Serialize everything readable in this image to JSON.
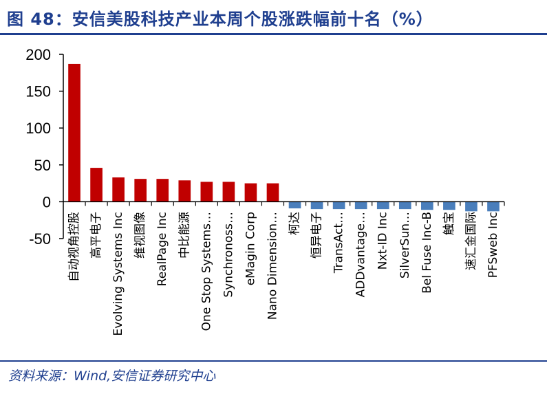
{
  "title": "图 48：安信美股科技产业本周个股涨跌幅前十名（%）",
  "source": "资料来源：Wind,安信证券研究中心",
  "colors": {
    "positive": "#c00000",
    "negative": "#4a7ebb",
    "title": "#1f3f8f",
    "axis": "#000000"
  },
  "chart_data": {
    "type": "bar",
    "title": "",
    "xlabel": "",
    "ylabel": "",
    "ylim": [
      -50,
      200
    ],
    "yticks": [
      200,
      150,
      100,
      50,
      0,
      -50
    ],
    "grid": false,
    "legend": "none",
    "categories": [
      "自动视角控股",
      "高平电子",
      "Evolving Systems Inc",
      "维视图像",
      "RealPage Inc",
      "中比能源",
      "One Stop Systems…",
      "Synchronoss…",
      "eMagin Corp",
      "Nano Dimension…",
      "柯达",
      "恒异电子",
      "TransAct…",
      "ADDvantage…",
      "Nxt-ID Inc",
      "SilverSun…",
      "Bel Fuse Inc-B",
      "触宝",
      "速汇金国际",
      "PFSweb Inc"
    ],
    "values": [
      187,
      46,
      33,
      31,
      31,
      29,
      27,
      27,
      25,
      25,
      -9,
      -10,
      -10,
      -10,
      -10,
      -10,
      -11,
      -11,
      -13,
      -13
    ]
  }
}
